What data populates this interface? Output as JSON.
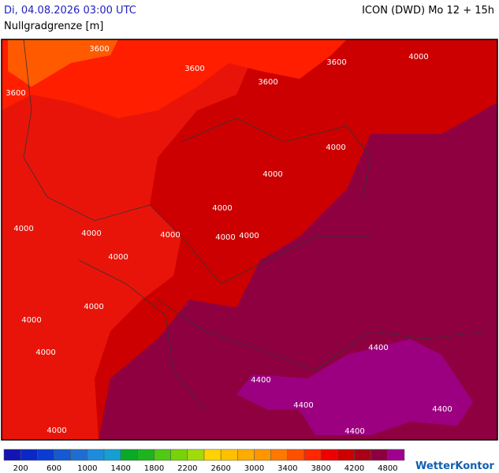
{
  "header": {
    "date": "Di, 04.08.2026 03:00 UTC",
    "model": "ICON (DWD) Mo 12 + 15h",
    "subtitle": "Nullgradgrenze [m]"
  },
  "map": {
    "labels": [
      3600,
      3600,
      3600,
      3600,
      4000,
      3600,
      4000,
      4000,
      4000,
      4000,
      4000,
      4000,
      4000,
      4000,
      4000,
      4000,
      4000,
      4000,
      4400,
      4400,
      4400,
      4400,
      4400,
      4000
    ]
  },
  "legend": {
    "colors": [
      "#1414b4",
      "#0a28c8",
      "#0a3cd2",
      "#145ad2",
      "#1e6ed2",
      "#1e8cdc",
      "#14a0d2",
      "#0aaa28",
      "#1eb41e",
      "#50c814",
      "#78d20a",
      "#a0dc0a",
      "#ffd200",
      "#ffc000",
      "#ffac00",
      "#ff9600",
      "#ff7800",
      "#ff5000",
      "#ff2800",
      "#ee0000",
      "#cc0000",
      "#aa0018",
      "#8c0040",
      "#a00090"
    ],
    "labels": [
      200,
      600,
      1000,
      1400,
      1800,
      2200,
      2600,
      3000,
      3400,
      3800,
      4200,
      4800
    ]
  },
  "brand": "WetterKontor"
}
